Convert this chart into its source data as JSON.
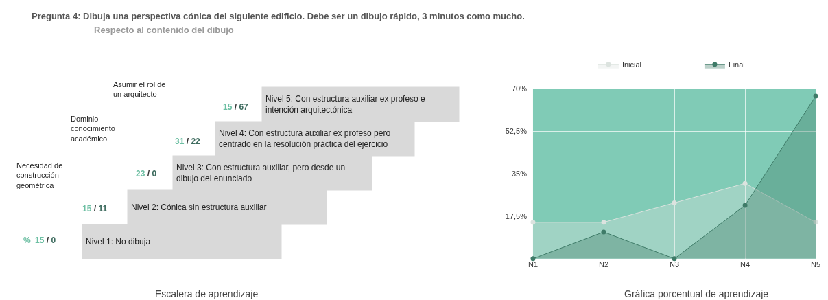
{
  "chart_data": [
    {
      "type": "other",
      "title": "Pregunta 4: Dibuja una perspectiva cónica del siguiente edificio. Debe ser un dibujo rápido, 3 minutos como mucho.",
      "subtitle": "Respecto al contenido del dibujo",
      "categories": [
        "Nivel 1: No dibuja",
        "Nivel 2: Cónica sin estructura auxiliar",
        "Nivel 3: Con estructura auxiliar, pero desde un dibujo del enunciado",
        "Nivel 4: Con estructura auxiliar ex profeso pero centrado en la resolución práctica del ejercicio",
        "Nivel 5: Con estructura auxiliar ex profeso e intención arquitectónica"
      ],
      "annotations": [
        "%",
        "Necesidad de construcción geométrica",
        "Dominio conocimiento académico",
        "Asumir el rol de un arquitecto",
        "Escalera de aprendizaje",
        "15 / 0",
        "15 / 11",
        "23 / 0",
        "31 / 22",
        "15 / 67"
      ]
    },
    {
      "type": "area",
      "categories": [
        "N1",
        "N2",
        "N3",
        "N4",
        "N5"
      ],
      "series": [
        {
          "name": "Inicial",
          "color": "#dce3df",
          "values": [
            15,
            15,
            23,
            31,
            15
          ]
        },
        {
          "name": "Final",
          "color": "#3f7b68",
          "values": [
            0,
            11,
            0,
            22,
            67
          ]
        }
      ],
      "ylim": [
        0,
        70
      ],
      "yticks": [
        {
          "value": 17.5,
          "label": "17,5%"
        },
        {
          "value": 35,
          "label": "35%"
        },
        {
          "value": 52.5,
          "label": "52,5%"
        },
        {
          "value": 70,
          "label": "70%"
        }
      ],
      "grid": true,
      "legend": "top",
      "marker": "circle",
      "annotations": [
        "Gráfica porcentual de aprendizaje"
      ]
    }
  ]
}
